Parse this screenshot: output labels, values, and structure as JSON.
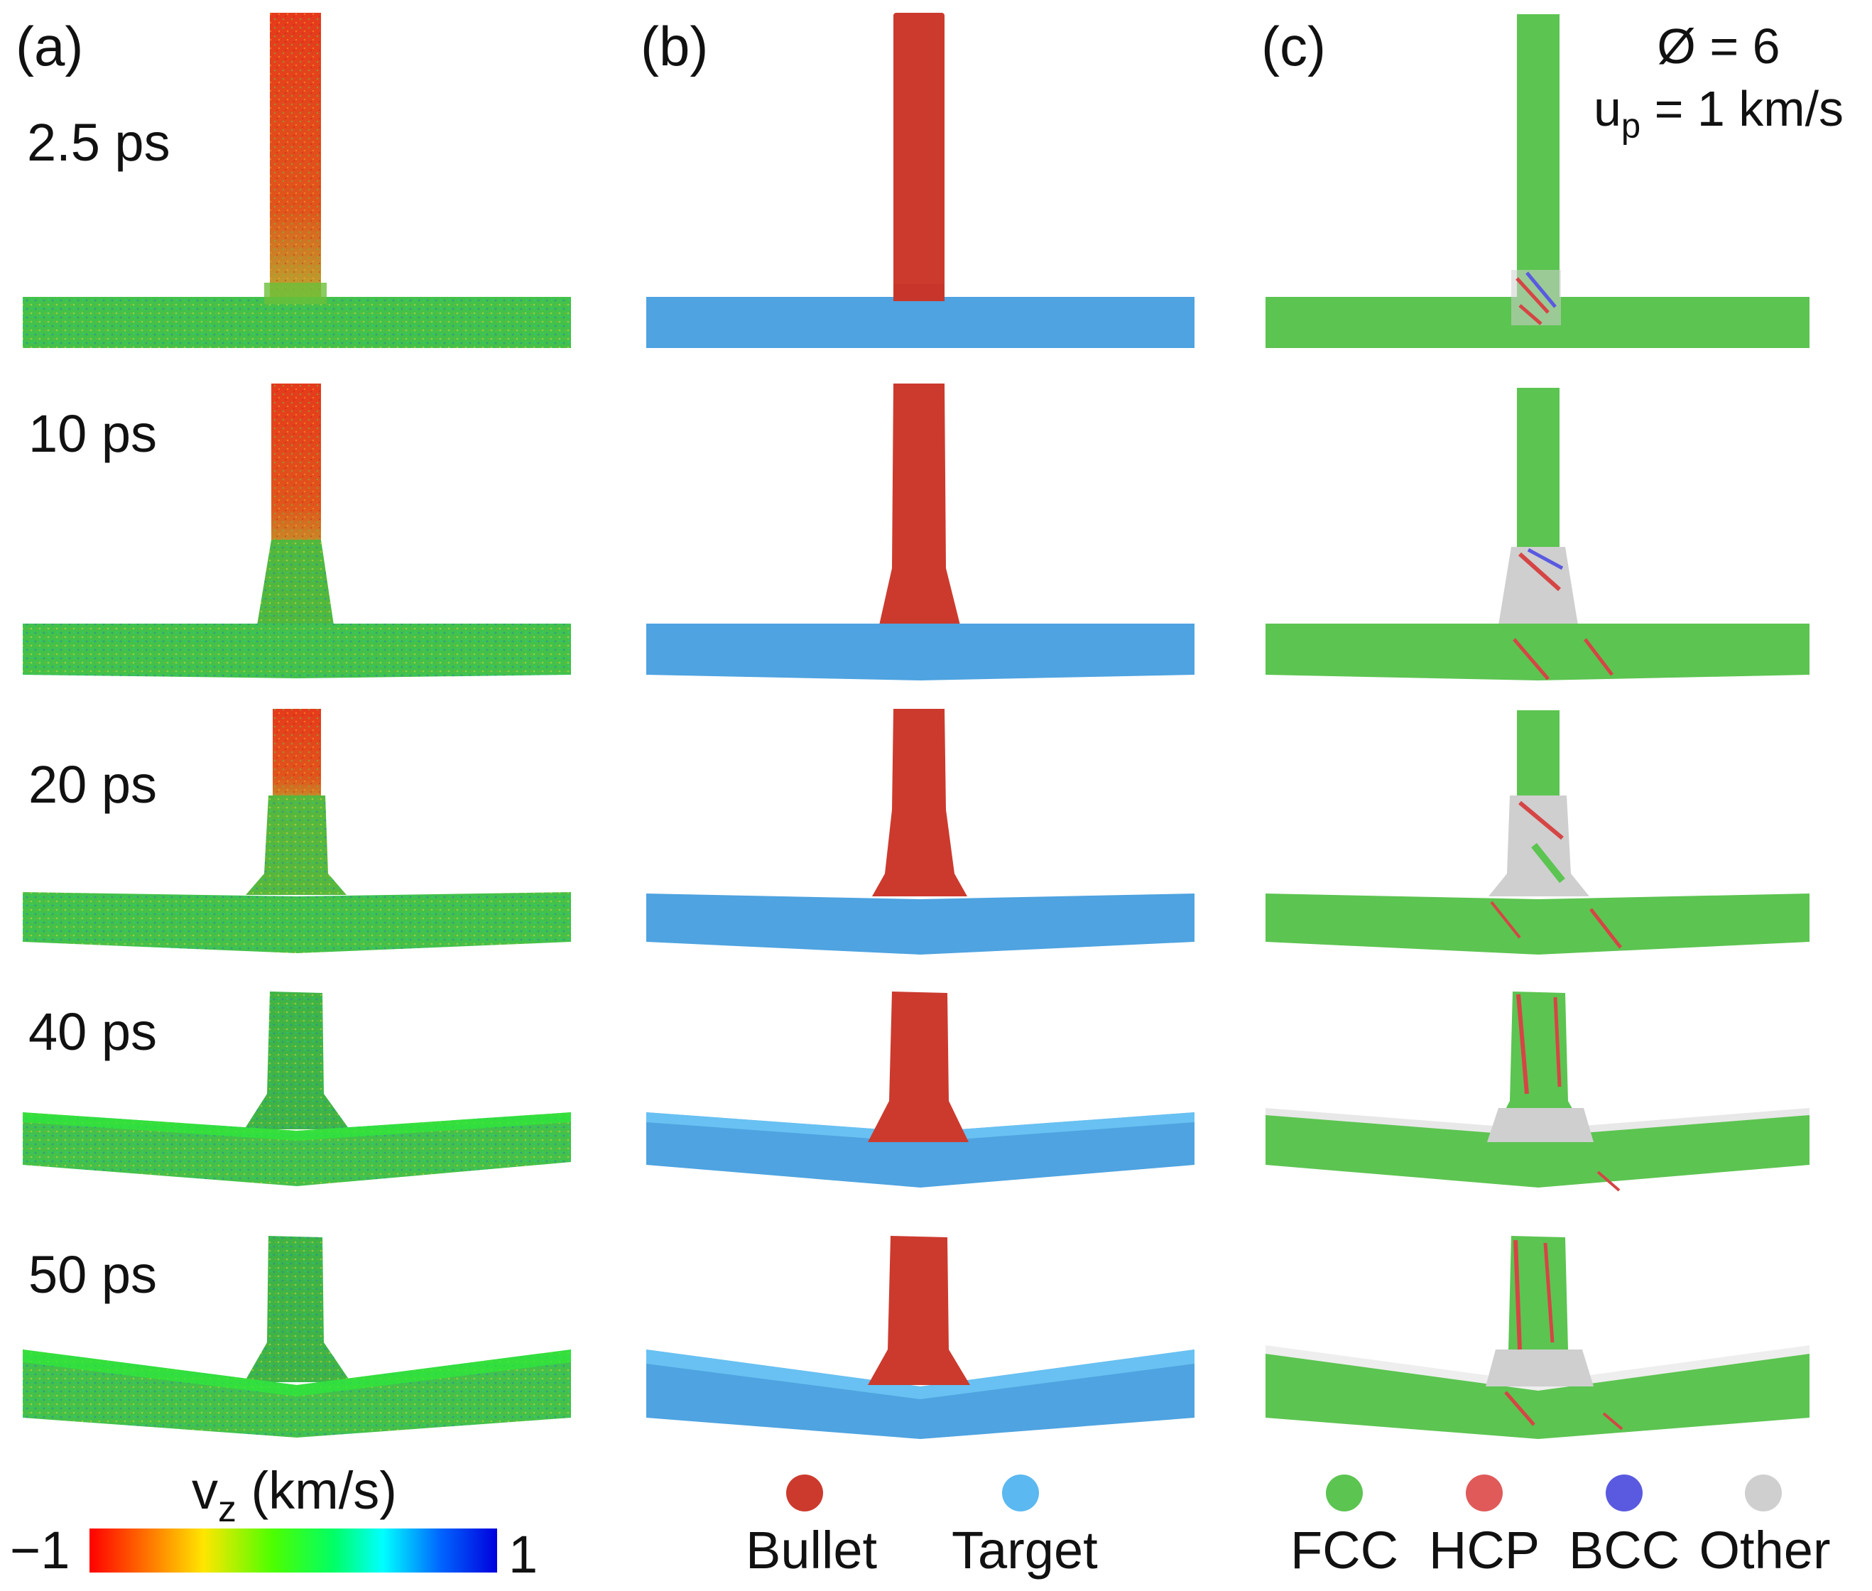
{
  "figure": {
    "panels": [
      {
        "label": "(a)",
        "coloring": "v_z"
      },
      {
        "label": "(b)",
        "coloring": "material"
      },
      {
        "label": "(c)",
        "coloring": "structure"
      }
    ],
    "times": [
      "2.5 ps",
      "10 ps",
      "20 ps",
      "40 ps",
      "50 ps"
    ],
    "params": {
      "diameter_text": "Ø = 6",
      "velocity_symbol": "u",
      "velocity_subscript": "p",
      "velocity_value": " = 1 km/s"
    },
    "colorbar": {
      "title_symbol": "v",
      "title_subscript": "z",
      "title_unit": " (km/s)",
      "min_label": "−1",
      "max_label": "1"
    },
    "legend_b": [
      {
        "label": "Bullet",
        "color": "#cc3a2e"
      },
      {
        "label": "Target",
        "color": "#5bb8f0"
      }
    ],
    "legend_c": [
      {
        "label": "FCC",
        "color": "#5cc451"
      },
      {
        "label": "HCP",
        "color": "#e05a5a"
      },
      {
        "label": "BCC",
        "color": "#5a5ae0"
      },
      {
        "label": "Other",
        "color": "#cfcfcf"
      }
    ],
    "colors": {
      "vz_fast": "#e8341c",
      "vz_rest": "#43c14a",
      "bullet": "#cc3a2e",
      "target": "#4ea3e0",
      "fcc": "#5cc451",
      "hcp_streak": "#d64545",
      "other": "#cfcfcf"
    }
  }
}
